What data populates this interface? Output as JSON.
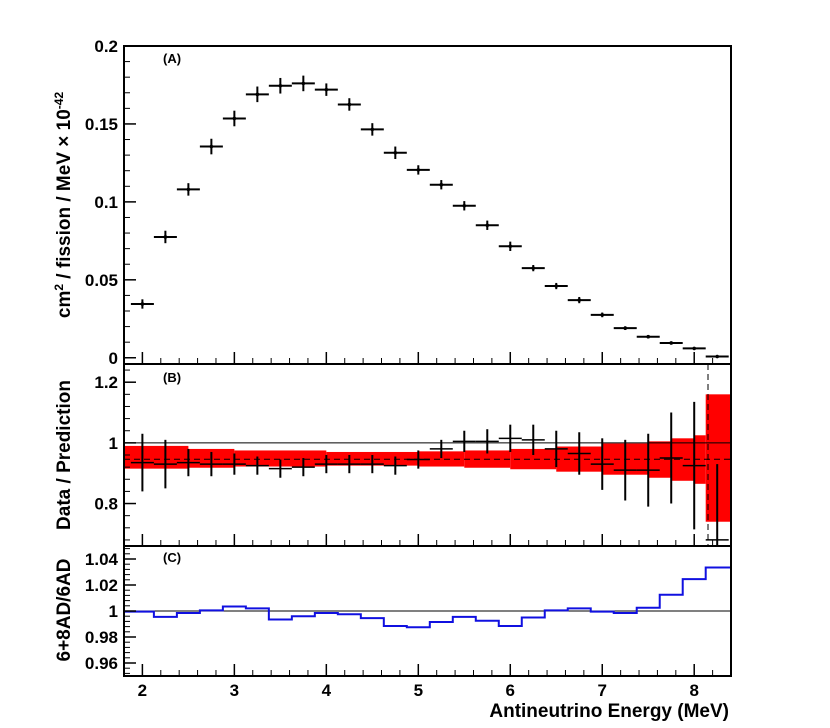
{
  "chart_data": [
    {
      "type": "scatter",
      "panel_label": "(A)",
      "ylabel": "cm² / fission / MeV × 10⁻⁴²",
      "ylabel_parts": {
        "main": "cm",
        "sup1": "2",
        "rest": " / fission / MeV × 10",
        "sup2": "-42"
      },
      "xlim": [
        1.8,
        8.4
      ],
      "ylim": [
        -0.004,
        0.2
      ],
      "yticks": [
        {
          "value": 0,
          "label": "0"
        },
        {
          "value": 0.05,
          "label": "0.05"
        },
        {
          "value": 0.1,
          "label": "0.1"
        },
        {
          "value": 0.15,
          "label": "0.15"
        },
        {
          "value": 0.2,
          "label": "0.2"
        }
      ],
      "points": [
        {
          "x": 2.0,
          "xerr": 0.125,
          "y": 0.0345,
          "yerr": 0.003
        },
        {
          "x": 2.25,
          "xerr": 0.125,
          "y": 0.0775,
          "yerr": 0.004
        },
        {
          "x": 2.5,
          "xerr": 0.125,
          "y": 0.108,
          "yerr": 0.004
        },
        {
          "x": 2.75,
          "xerr": 0.125,
          "y": 0.1355,
          "yerr": 0.005
        },
        {
          "x": 3.0,
          "xerr": 0.125,
          "y": 0.1535,
          "yerr": 0.005
        },
        {
          "x": 3.25,
          "xerr": 0.125,
          "y": 0.169,
          "yerr": 0.005
        },
        {
          "x": 3.5,
          "xerr": 0.125,
          "y": 0.1745,
          "yerr": 0.005
        },
        {
          "x": 3.75,
          "xerr": 0.125,
          "y": 0.176,
          "yerr": 0.005
        },
        {
          "x": 4.0,
          "xerr": 0.125,
          "y": 0.172,
          "yerr": 0.004
        },
        {
          "x": 4.25,
          "xerr": 0.125,
          "y": 0.1625,
          "yerr": 0.004
        },
        {
          "x": 4.5,
          "xerr": 0.125,
          "y": 0.1465,
          "yerr": 0.004
        },
        {
          "x": 4.75,
          "xerr": 0.125,
          "y": 0.1315,
          "yerr": 0.004
        },
        {
          "x": 5.0,
          "xerr": 0.125,
          "y": 0.1205,
          "yerr": 0.003
        },
        {
          "x": 5.25,
          "xerr": 0.125,
          "y": 0.111,
          "yerr": 0.003
        },
        {
          "x": 5.5,
          "xerr": 0.125,
          "y": 0.0975,
          "yerr": 0.003
        },
        {
          "x": 5.75,
          "xerr": 0.125,
          "y": 0.085,
          "yerr": 0.003
        },
        {
          "x": 6.0,
          "xerr": 0.125,
          "y": 0.0715,
          "yerr": 0.003
        },
        {
          "x": 6.25,
          "xerr": 0.125,
          "y": 0.0575,
          "yerr": 0.002
        },
        {
          "x": 6.5,
          "xerr": 0.125,
          "y": 0.046,
          "yerr": 0.002
        },
        {
          "x": 6.75,
          "xerr": 0.125,
          "y": 0.037,
          "yerr": 0.002
        },
        {
          "x": 7.0,
          "xerr": 0.125,
          "y": 0.0275,
          "yerr": 0.0015
        },
        {
          "x": 7.25,
          "xerr": 0.125,
          "y": 0.019,
          "yerr": 0.0012
        },
        {
          "x": 7.5,
          "xerr": 0.125,
          "y": 0.0135,
          "yerr": 0.001
        },
        {
          "x": 7.75,
          "xerr": 0.125,
          "y": 0.0095,
          "yerr": 0.0008
        },
        {
          "x": 8.0,
          "xerr": 0.125,
          "y": 0.006,
          "yerr": 0.0006
        },
        {
          "x": 8.25,
          "xerr": 0.125,
          "y": 0.0008,
          "yerr": 0.0004
        }
      ]
    },
    {
      "type": "scatter",
      "panel_label": "(B)",
      "ylabel": "Data / Prediction",
      "xlim": [
        1.8,
        8.4
      ],
      "ylim": [
        0.66,
        1.26
      ],
      "yticks": [
        {
          "value": 0.8,
          "label": "0.8"
        },
        {
          "value": 1.0,
          "label": "1"
        },
        {
          "value": 1.2,
          "label": "1.2"
        }
      ],
      "reference_line": 1.0,
      "mean_line": 0.946,
      "dashed_vertical_x": 8.15,
      "band_color": "#ff0000",
      "band": [
        {
          "x0": 1.8,
          "x1": 2.5,
          "low": 0.915,
          "high": 0.99
        },
        {
          "x0": 2.5,
          "x1": 3.0,
          "low": 0.918,
          "high": 0.98
        },
        {
          "x0": 3.0,
          "x1": 4.0,
          "low": 0.922,
          "high": 0.975
        },
        {
          "x0": 4.0,
          "x1": 5.0,
          "low": 0.925,
          "high": 0.97
        },
        {
          "x0": 5.0,
          "x1": 5.5,
          "low": 0.922,
          "high": 0.972
        },
        {
          "x0": 5.5,
          "x1": 6.0,
          "low": 0.918,
          "high": 0.975
        },
        {
          "x0": 6.0,
          "x1": 6.5,
          "low": 0.913,
          "high": 0.98
        },
        {
          "x0": 6.5,
          "x1": 7.0,
          "low": 0.905,
          "high": 0.988
        },
        {
          "x0": 7.0,
          "x1": 7.5,
          "low": 0.895,
          "high": 0.998
        },
        {
          "x0": 7.5,
          "x1": 7.75,
          "low": 0.885,
          "high": 1.005
        },
        {
          "x0": 7.75,
          "x1": 8.0,
          "low": 0.875,
          "high": 1.015
        },
        {
          "x0": 8.0,
          "x1": 8.125,
          "low": 0.865,
          "high": 1.025
        },
        {
          "x0": 8.125,
          "x1": 8.4,
          "low": 0.74,
          "high": 1.16
        }
      ],
      "points": [
        {
          "x": 2.0,
          "xerr": 0.125,
          "y": 0.935,
          "yerr": 0.095
        },
        {
          "x": 2.25,
          "xerr": 0.125,
          "y": 0.93,
          "yerr": 0.08
        },
        {
          "x": 2.5,
          "xerr": 0.125,
          "y": 0.935,
          "yerr": 0.045
        },
        {
          "x": 2.75,
          "xerr": 0.125,
          "y": 0.93,
          "yerr": 0.04
        },
        {
          "x": 3.0,
          "xerr": 0.125,
          "y": 0.93,
          "yerr": 0.035
        },
        {
          "x": 3.25,
          "xerr": 0.125,
          "y": 0.925,
          "yerr": 0.03
        },
        {
          "x": 3.5,
          "xerr": 0.125,
          "y": 0.915,
          "yerr": 0.03
        },
        {
          "x": 3.75,
          "xerr": 0.125,
          "y": 0.92,
          "yerr": 0.03
        },
        {
          "x": 4.0,
          "xerr": 0.125,
          "y": 0.93,
          "yerr": 0.03
        },
        {
          "x": 4.25,
          "xerr": 0.125,
          "y": 0.93,
          "yerr": 0.03
        },
        {
          "x": 4.5,
          "xerr": 0.125,
          "y": 0.93,
          "yerr": 0.03
        },
        {
          "x": 4.75,
          "xerr": 0.125,
          "y": 0.925,
          "yerr": 0.03
        },
        {
          "x": 5.0,
          "xerr": 0.125,
          "y": 0.945,
          "yerr": 0.03
        },
        {
          "x": 5.25,
          "xerr": 0.125,
          "y": 0.98,
          "yerr": 0.03
        },
        {
          "x": 5.5,
          "xerr": 0.125,
          "y": 1.005,
          "yerr": 0.035
        },
        {
          "x": 5.75,
          "xerr": 0.125,
          "y": 1.005,
          "yerr": 0.04
        },
        {
          "x": 6.0,
          "xerr": 0.125,
          "y": 1.015,
          "yerr": 0.045
        },
        {
          "x": 6.25,
          "xerr": 0.125,
          "y": 1.01,
          "yerr": 0.05
        },
        {
          "x": 6.5,
          "xerr": 0.125,
          "y": 0.98,
          "yerr": 0.06
        },
        {
          "x": 6.75,
          "xerr": 0.125,
          "y": 0.965,
          "yerr": 0.07
        },
        {
          "x": 7.0,
          "xerr": 0.125,
          "y": 0.93,
          "yerr": 0.085
        },
        {
          "x": 7.25,
          "xerr": 0.125,
          "y": 0.91,
          "yerr": 0.1
        },
        {
          "x": 7.5,
          "xerr": 0.125,
          "y": 0.91,
          "yerr": 0.12
        },
        {
          "x": 7.75,
          "xerr": 0.125,
          "y": 0.95,
          "yerr": 0.15
        },
        {
          "x": 8.0,
          "xerr": 0.125,
          "y": 0.925,
          "yerr": 0.21
        },
        {
          "x": 8.25,
          "xerr": 0.125,
          "y": 0.68,
          "yerr": 0.25
        }
      ]
    },
    {
      "type": "line",
      "panel_label": "(C)",
      "ylabel": "6+8AD/6AD",
      "xlim": [
        1.8,
        8.4
      ],
      "ylim": [
        0.95,
        1.05
      ],
      "yticks": [
        {
          "value": 0.96,
          "label": "0.96"
        },
        {
          "value": 0.98,
          "label": "0.98"
        },
        {
          "value": 1.0,
          "label": "1"
        },
        {
          "value": 1.02,
          "label": "1.02"
        },
        {
          "value": 1.04,
          "label": "1.04"
        }
      ],
      "reference_line": 1.0,
      "line_color": "#1010e0",
      "step_edges": [
        1.8,
        2.125,
        2.375,
        2.625,
        2.875,
        3.125,
        3.375,
        3.625,
        3.875,
        4.125,
        4.375,
        4.625,
        4.875,
        5.125,
        5.375,
        5.625,
        5.875,
        6.125,
        6.375,
        6.625,
        6.875,
        7.125,
        7.375,
        7.625,
        7.875,
        8.125,
        8.4
      ],
      "step_values": [
        0.9995,
        0.9955,
        0.9985,
        1.0005,
        1.0035,
        1.002,
        0.9935,
        0.996,
        0.9985,
        0.9975,
        0.9945,
        0.9885,
        0.9875,
        0.9915,
        0.9955,
        0.9925,
        0.9885,
        0.995,
        1.0005,
        1.002,
        0.9995,
        0.9985,
        1.0025,
        1.0125,
        1.0245,
        1.0335
      ]
    }
  ],
  "xaxis": {
    "title": "Antineutrino Energy (MeV)",
    "ticks": [
      {
        "value": 2,
        "label": "2"
      },
      {
        "value": 3,
        "label": "3"
      },
      {
        "value": 4,
        "label": "4"
      },
      {
        "value": 5,
        "label": "5"
      },
      {
        "value": 6,
        "label": "6"
      },
      {
        "value": 7,
        "label": "7"
      },
      {
        "value": 8,
        "label": "8"
      }
    ]
  }
}
